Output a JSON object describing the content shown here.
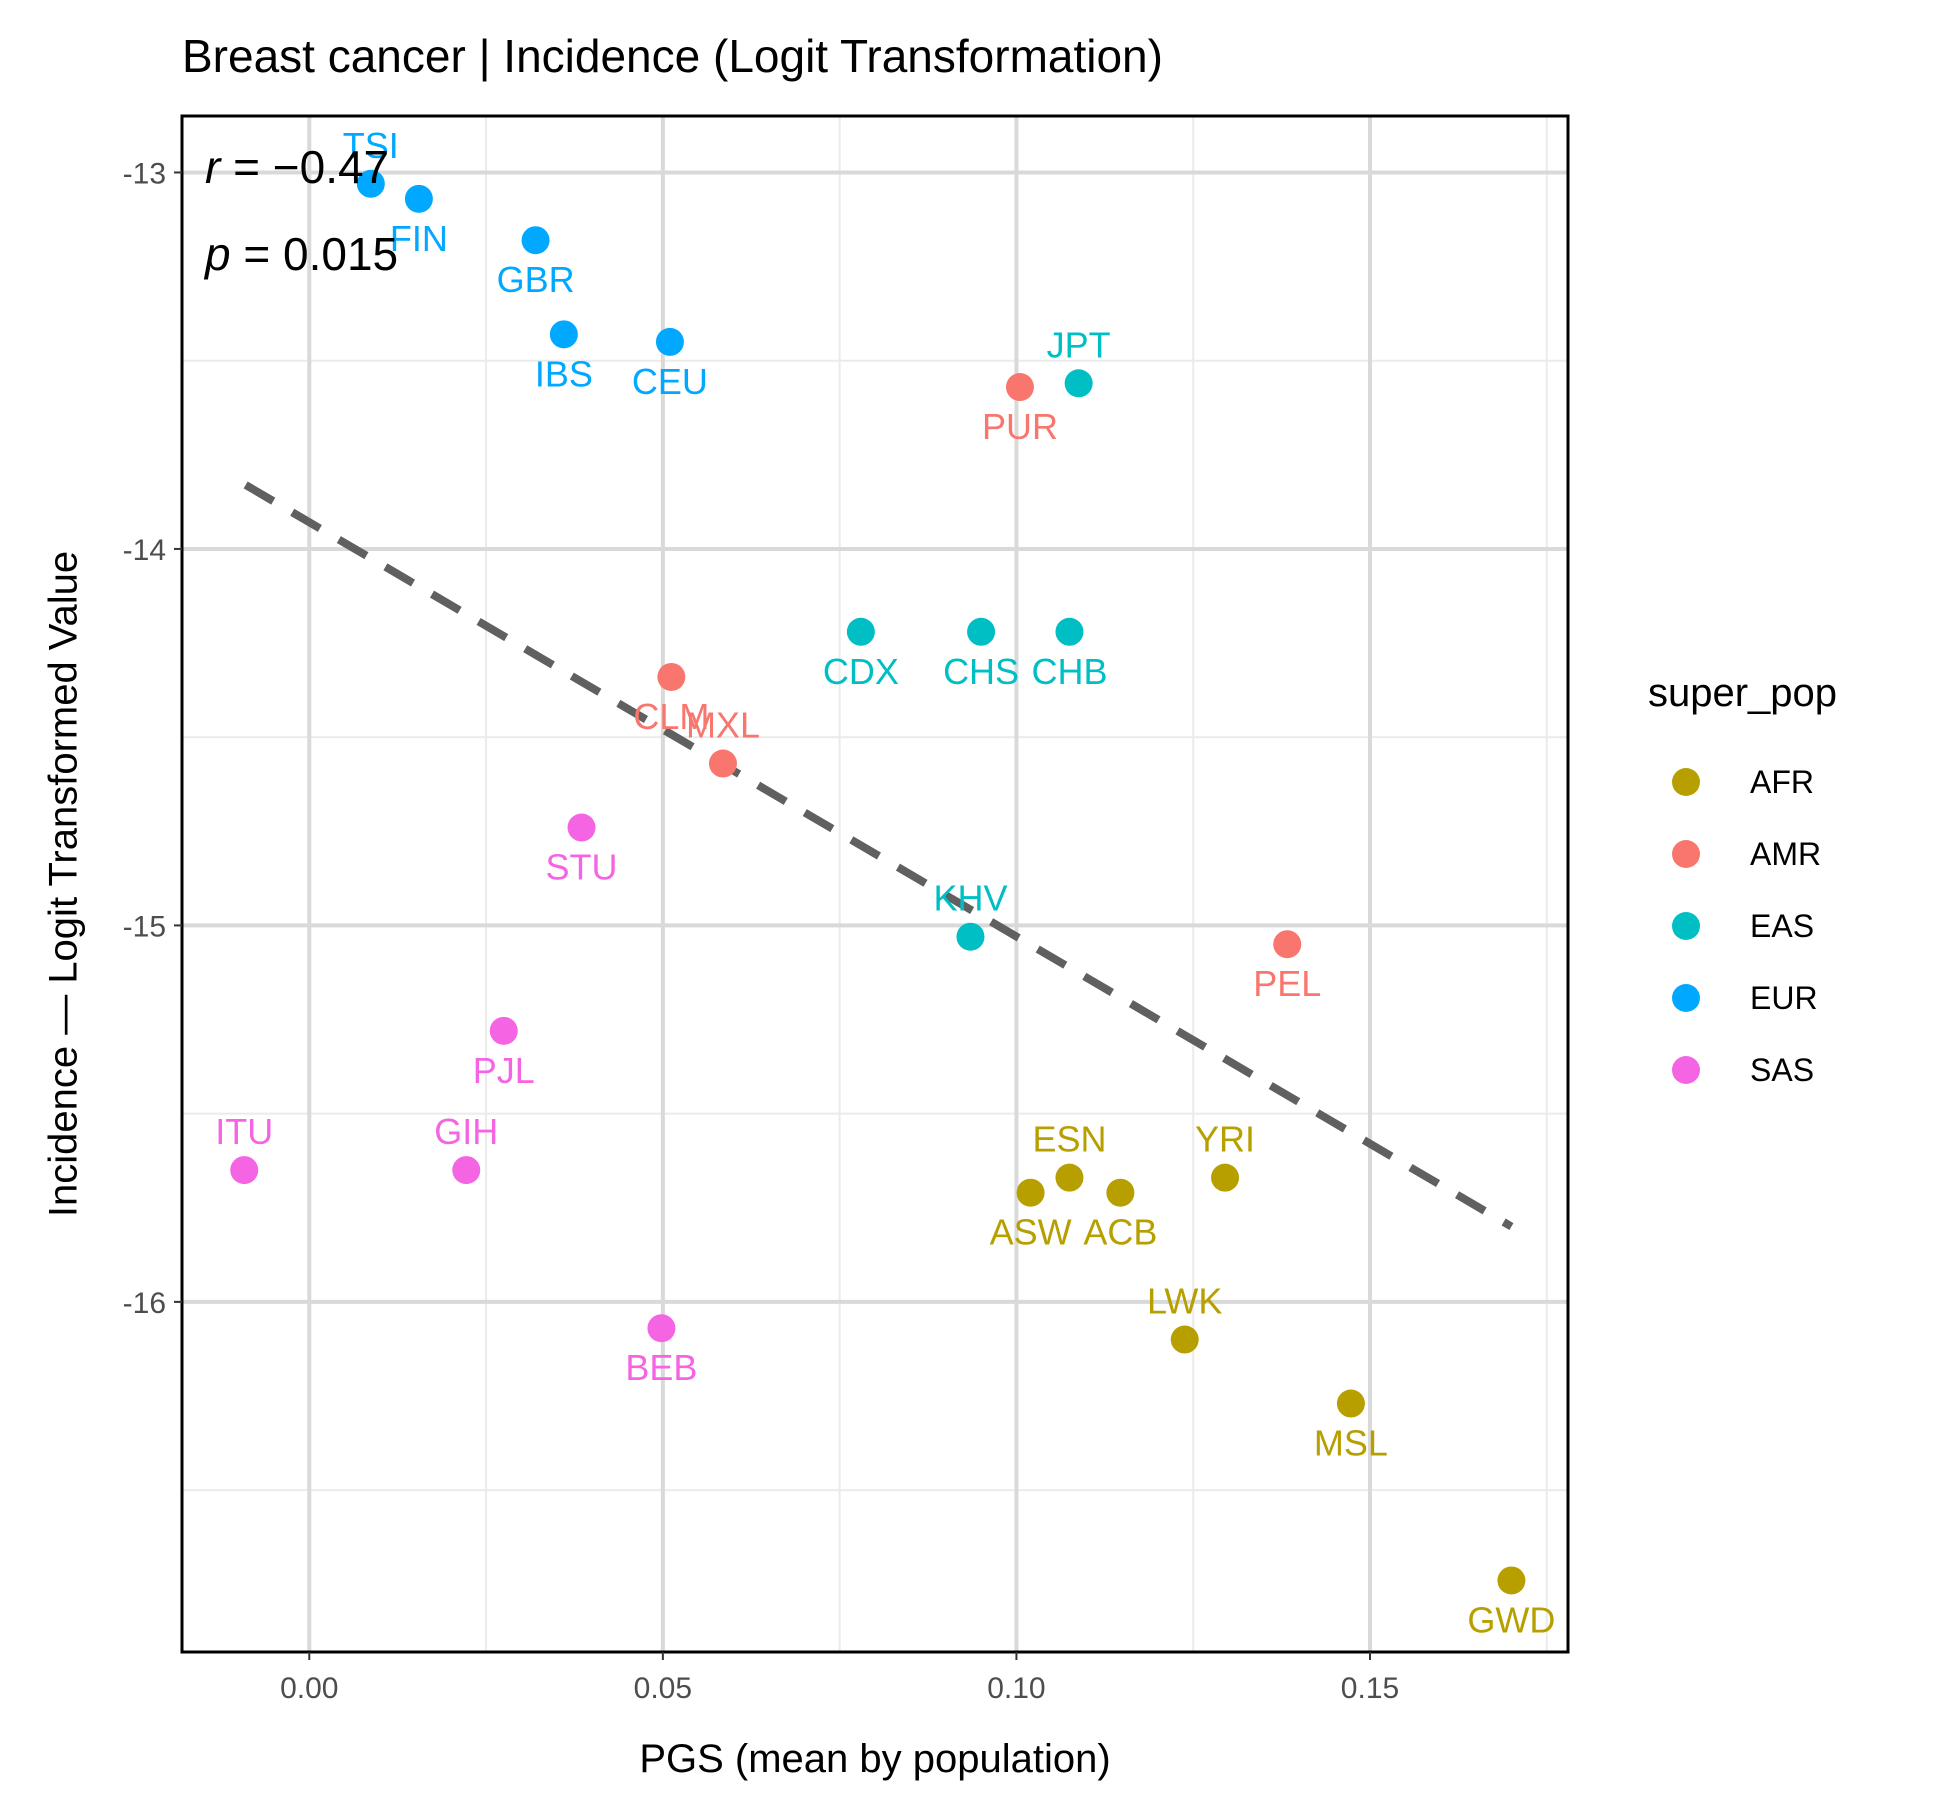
{
  "chart_data": {
    "type": "scatter",
    "title": "Breast cancer | Incidence (Logit Transformation)",
    "xlabel": "PGS (mean by population)",
    "ylabel": "Incidence — Logit Transformed Value",
    "xlim": [
      -0.018,
      0.178
    ],
    "ylim": [
      -16.93,
      -12.85
    ],
    "x_ticks": [
      0.0,
      0.05,
      0.1,
      0.15
    ],
    "x_tick_labels": [
      "0.00",
      "0.05",
      "0.10",
      "0.15"
    ],
    "y_ticks": [
      -13,
      -14,
      -15,
      -16
    ],
    "y_tick_labels": [
      "-13",
      "-14",
      "-15",
      "-16"
    ],
    "grid": true,
    "legend": {
      "title": "super_pop",
      "position": "right",
      "entries": [
        {
          "name": "AFR",
          "color": "#b79f00"
        },
        {
          "name": "AMR",
          "color": "#f8766d"
        },
        {
          "name": "EAS",
          "color": "#00bfc4"
        },
        {
          "name": "EUR",
          "color": "#00a9ff"
        },
        {
          "name": "SAS",
          "color": "#f564e3"
        }
      ]
    },
    "annotation": {
      "r_symbol": "r",
      "r_text": " = −0.47",
      "p_symbol": "p",
      "p_text": " = 0.015"
    },
    "regression_line": {
      "x": [
        -0.009,
        0.17
      ],
      "y": [
        -13.83,
        -15.8
      ],
      "style": "dashed",
      "color": "#606060"
    },
    "points": [
      {
        "label": "TSI",
        "group": "EUR",
        "x": 0.0087,
        "y": -13.03,
        "label_pos": "above"
      },
      {
        "label": "FIN",
        "group": "EUR",
        "x": 0.0155,
        "y": -13.07,
        "label_pos": "below"
      },
      {
        "label": "GBR",
        "group": "EUR",
        "x": 0.032,
        "y": -13.18,
        "label_pos": "below"
      },
      {
        "label": "IBS",
        "group": "EUR",
        "x": 0.036,
        "y": -13.43,
        "label_pos": "below"
      },
      {
        "label": "CEU",
        "group": "EUR",
        "x": 0.051,
        "y": -13.45,
        "label_pos": "below"
      },
      {
        "label": "PUR",
        "group": "AMR",
        "x": 0.1005,
        "y": -13.57,
        "label_pos": "below"
      },
      {
        "label": "JPT",
        "group": "EAS",
        "x": 0.1088,
        "y": -13.56,
        "label_pos": "above"
      },
      {
        "label": "CDX",
        "group": "EAS",
        "x": 0.078,
        "y": -14.22,
        "label_pos": "below"
      },
      {
        "label": "CHS",
        "group": "EAS",
        "x": 0.095,
        "y": -14.22,
        "label_pos": "below"
      },
      {
        "label": "CHB",
        "group": "EAS",
        "x": 0.1075,
        "y": -14.22,
        "label_pos": "below"
      },
      {
        "label": "CLM",
        "group": "AMR",
        "x": 0.0512,
        "y": -14.34,
        "label_pos": "below"
      },
      {
        "label": "MXL",
        "group": "AMR",
        "x": 0.0585,
        "y": -14.57,
        "label_pos": "above"
      },
      {
        "label": "STU",
        "group": "SAS",
        "x": 0.0385,
        "y": -14.74,
        "label_pos": "below"
      },
      {
        "label": "KHV",
        "group": "EAS",
        "x": 0.0935,
        "y": -15.03,
        "label_pos": "above"
      },
      {
        "label": "PEL",
        "group": "AMR",
        "x": 0.1383,
        "y": -15.05,
        "label_pos": "below"
      },
      {
        "label": "PJL",
        "group": "SAS",
        "x": 0.0275,
        "y": -15.28,
        "label_pos": "below"
      },
      {
        "label": "ITU",
        "group": "SAS",
        "x": -0.0092,
        "y": -15.65,
        "label_pos": "above"
      },
      {
        "label": "GIH",
        "group": "SAS",
        "x": 0.0222,
        "y": -15.65,
        "label_pos": "above"
      },
      {
        "label": "ESN",
        "group": "AFR",
        "x": 0.1075,
        "y": -15.67,
        "label_pos": "above"
      },
      {
        "label": "YRI",
        "group": "AFR",
        "x": 0.1295,
        "y": -15.67,
        "label_pos": "above"
      },
      {
        "label": "ASW",
        "group": "AFR",
        "x": 0.102,
        "y": -15.71,
        "label_pos": "below"
      },
      {
        "label": "ACB",
        "group": "AFR",
        "x": 0.1147,
        "y": -15.71,
        "label_pos": "below"
      },
      {
        "label": "BEB",
        "group": "SAS",
        "x": 0.0498,
        "y": -16.07,
        "label_pos": "below"
      },
      {
        "label": "LWK",
        "group": "AFR",
        "x": 0.1238,
        "y": -16.1,
        "label_pos": "above"
      },
      {
        "label": "MSL",
        "group": "AFR",
        "x": 0.1473,
        "y": -16.27,
        "label_pos": "below"
      },
      {
        "label": "GWD",
        "group": "AFR",
        "x": 0.17,
        "y": -16.74,
        "label_pos": "below"
      }
    ]
  }
}
